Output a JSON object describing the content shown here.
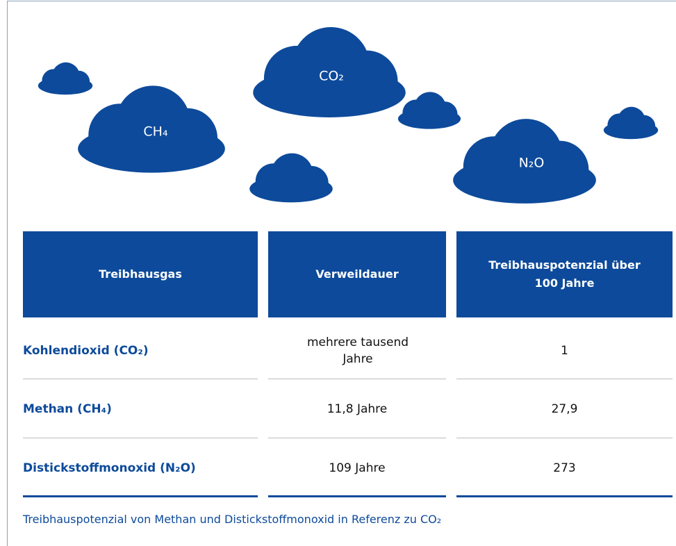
{
  "clouds": [
    {
      "label": "CO₂"
    },
    {
      "label": "CH₄"
    },
    {
      "label": "N₂O"
    }
  ],
  "table": {
    "header": [
      "Treibhausgas",
      "Verweildauer",
      "Treibhauspotenzial über 100 Jahre"
    ],
    "rows": [
      [
        "Kohlendioxid (CO₂)",
        "mehrere tausend Jahre",
        "1"
      ],
      [
        "Methan (CH₄)",
        "11,8 Jahre",
        "27,9"
      ],
      [
        "Distickstoffmonoxid (N₂O)",
        "109 Jahre",
        "273"
      ]
    ]
  },
  "caption": "Treibhauspotenzial von Methan und Distickstoffmonoxid  in Referenz zu CO₂"
}
